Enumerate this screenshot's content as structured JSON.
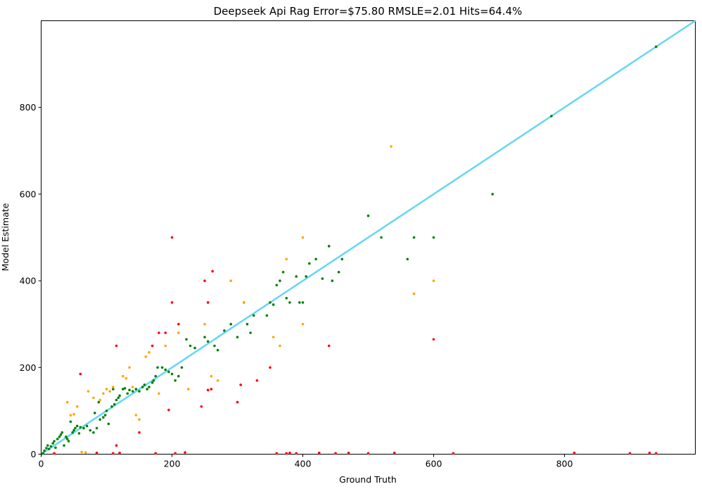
{
  "chart_data": {
    "type": "scatter",
    "title": "Deepseek Api Rag Error=$75.80 RMSLE=2.01 Hits=64.4%",
    "xlabel": "Ground Truth",
    "ylabel": "Model Estimate",
    "xlim": [
      0,
      1000
    ],
    "ylim": [
      0,
      1000
    ],
    "xticks": [
      0,
      200,
      400,
      600,
      800
    ],
    "yticks": [
      0,
      200,
      400,
      600,
      800
    ],
    "grid": false,
    "reference_line": {
      "from": [
        0,
        0
      ],
      "to": [
        1000,
        1000
      ],
      "color": "#66d6f5"
    },
    "series": [
      {
        "color": "#008000",
        "points": [
          [
            1,
            1
          ],
          [
            3,
            2
          ],
          [
            5,
            8
          ],
          [
            8,
            14
          ],
          [
            10,
            20
          ],
          [
            12,
            12
          ],
          [
            15,
            18
          ],
          [
            18,
            25
          ],
          [
            20,
            30
          ],
          [
            22,
            15
          ],
          [
            25,
            35
          ],
          [
            28,
            40
          ],
          [
            30,
            45
          ],
          [
            32,
            50
          ],
          [
            35,
            20
          ],
          [
            38,
            40
          ],
          [
            40,
            35
          ],
          [
            42,
            30
          ],
          [
            45,
            75
          ],
          [
            48,
            50
          ],
          [
            50,
            55
          ],
          [
            52,
            60
          ],
          [
            55,
            65
          ],
          [
            58,
            48
          ],
          [
            60,
            62
          ],
          [
            65,
            60
          ],
          [
            70,
            65
          ],
          [
            75,
            55
          ],
          [
            80,
            50
          ],
          [
            82,
            95
          ],
          [
            85,
            60
          ],
          [
            88,
            120
          ],
          [
            90,
            80
          ],
          [
            95,
            85
          ],
          [
            98,
            90
          ],
          [
            100,
            100
          ],
          [
            103,
            70
          ],
          [
            108,
            110
          ],
          [
            110,
            150
          ],
          [
            112,
            115
          ],
          [
            115,
            125
          ],
          [
            118,
            130
          ],
          [
            120,
            135
          ],
          [
            125,
            150
          ],
          [
            128,
            152
          ],
          [
            132,
            140
          ],
          [
            135,
            148
          ],
          [
            140,
            145
          ],
          [
            145,
            150
          ],
          [
            150,
            145
          ],
          [
            155,
            155
          ],
          [
            158,
            160
          ],
          [
            162,
            150
          ],
          [
            165,
            155
          ],
          [
            170,
            165
          ],
          [
            172,
            170
          ],
          [
            175,
            180
          ],
          [
            178,
            200
          ],
          [
            185,
            200
          ],
          [
            190,
            195
          ],
          [
            195,
            190
          ],
          [
            200,
            185
          ],
          [
            205,
            170
          ],
          [
            210,
            180
          ],
          [
            215,
            200
          ],
          [
            222,
            265
          ],
          [
            228,
            250
          ],
          [
            235,
            245
          ],
          [
            250,
            270
          ],
          [
            255,
            260
          ],
          [
            265,
            250
          ],
          [
            270,
            240
          ],
          [
            280,
            285
          ],
          [
            290,
            300
          ],
          [
            300,
            270
          ],
          [
            310,
            350
          ],
          [
            315,
            300
          ],
          [
            320,
            280
          ],
          [
            325,
            320
          ],
          [
            345,
            320
          ],
          [
            350,
            350
          ],
          [
            355,
            345
          ],
          [
            360,
            390
          ],
          [
            365,
            400
          ],
          [
            370,
            420
          ],
          [
            375,
            360
          ],
          [
            380,
            350
          ],
          [
            390,
            410
          ],
          [
            395,
            350
          ],
          [
            400,
            350
          ],
          [
            405,
            410
          ],
          [
            410,
            440
          ],
          [
            420,
            450
          ],
          [
            430,
            405
          ],
          [
            440,
            480
          ],
          [
            445,
            400
          ],
          [
            455,
            420
          ],
          [
            460,
            450
          ],
          [
            500,
            550
          ],
          [
            520,
            500
          ],
          [
            560,
            450
          ],
          [
            570,
            500
          ],
          [
            600,
            500
          ],
          [
            690,
            600
          ],
          [
            780,
            780
          ],
          [
            940,
            940
          ]
        ]
      },
      {
        "color": "#ffa500",
        "points": [
          [
            40,
            120
          ],
          [
            45,
            90
          ],
          [
            50,
            92
          ],
          [
            55,
            110
          ],
          [
            62,
            5
          ],
          [
            68,
            4
          ],
          [
            72,
            145
          ],
          [
            80,
            130
          ],
          [
            90,
            125
          ],
          [
            95,
            140
          ],
          [
            100,
            150
          ],
          [
            105,
            145
          ],
          [
            110,
            155
          ],
          [
            125,
            180
          ],
          [
            130,
            175
          ],
          [
            135,
            200
          ],
          [
            140,
            155
          ],
          [
            145,
            90
          ],
          [
            150,
            80
          ],
          [
            160,
            225
          ],
          [
            165,
            235
          ],
          [
            170,
            250
          ],
          [
            180,
            140
          ],
          [
            190,
            250
          ],
          [
            210,
            280
          ],
          [
            225,
            150
          ],
          [
            250,
            300
          ],
          [
            255,
            350
          ],
          [
            260,
            180
          ],
          [
            270,
            170
          ],
          [
            290,
            400
          ],
          [
            310,
            350
          ],
          [
            355,
            270
          ],
          [
            365,
            250
          ],
          [
            375,
            450
          ],
          [
            400,
            500
          ],
          [
            400,
            300
          ],
          [
            535,
            710
          ],
          [
            570,
            370
          ],
          [
            600,
            400
          ]
        ]
      },
      {
        "color": "#ff0000",
        "points": [
          [
            20,
            2
          ],
          [
            60,
            185
          ],
          [
            85,
            3
          ],
          [
            110,
            2
          ],
          [
            115,
            20
          ],
          [
            115,
            250
          ],
          [
            120,
            3
          ],
          [
            150,
            50
          ],
          [
            170,
            250
          ],
          [
            175,
            2
          ],
          [
            180,
            280
          ],
          [
            190,
            280
          ],
          [
            195,
            102
          ],
          [
            200,
            500
          ],
          [
            200,
            350
          ],
          [
            205,
            2
          ],
          [
            210,
            300
          ],
          [
            220,
            4
          ],
          [
            245,
            110
          ],
          [
            250,
            400
          ],
          [
            255,
            350
          ],
          [
            255,
            148
          ],
          [
            260,
            150
          ],
          [
            262,
            422
          ],
          [
            300,
            120
          ],
          [
            305,
            160
          ],
          [
            330,
            170
          ],
          [
            350,
            200
          ],
          [
            360,
            2
          ],
          [
            375,
            2
          ],
          [
            380,
            3
          ],
          [
            390,
            2
          ],
          [
            425,
            3
          ],
          [
            440,
            250
          ],
          [
            450,
            2
          ],
          [
            470,
            3
          ],
          [
            500,
            2
          ],
          [
            540,
            3
          ],
          [
            600,
            265
          ],
          [
            630,
            2
          ],
          [
            815,
            3
          ],
          [
            900,
            2
          ],
          [
            930,
            3
          ],
          [
            940,
            2
          ]
        ]
      }
    ]
  }
}
